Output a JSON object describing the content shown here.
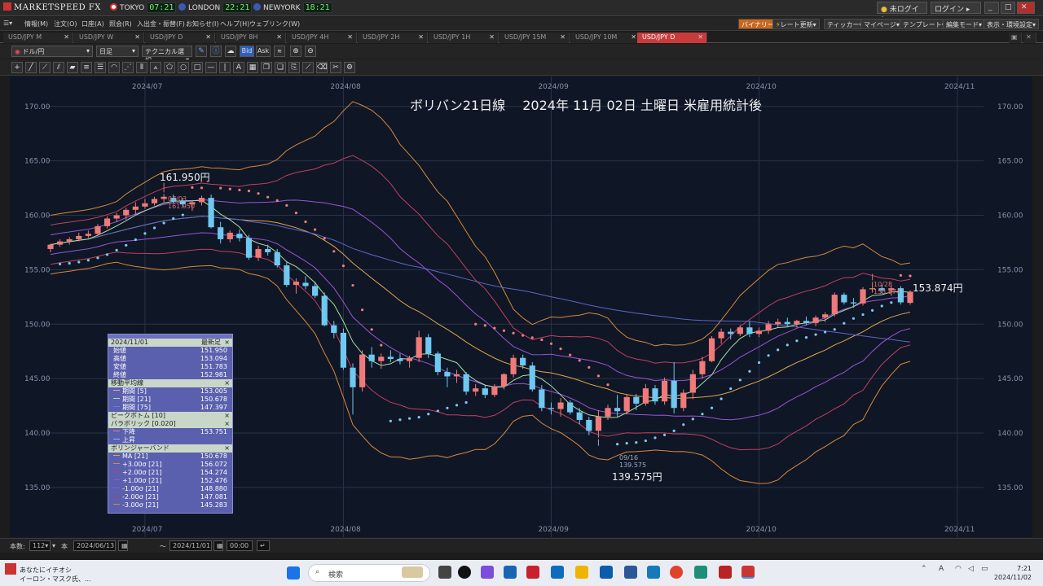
{
  "app": {
    "title": "MARKETSPEED FX"
  },
  "clocks": [
    {
      "city": "TOKYO",
      "time": "07:21",
      "color": "#d33"
    },
    {
      "city": "LONDON",
      "time": "22:21",
      "color": "#3a5bb5"
    },
    {
      "city": "NEWYORK",
      "time": "18:21",
      "color": "#3a5bb5"
    }
  ],
  "topright": {
    "status": "未ログイン",
    "login": "ログイン"
  },
  "menus": [
    "情報(M)",
    "注文(O)",
    "口座(A)",
    "照会(R)",
    "入出金・振替(F)",
    "お知らせ(I)",
    "ヘルプ(H)",
    "ウェブリンク(W)"
  ],
  "rmenus": [
    "バイナリー",
    "レート更新",
    "ティッカー",
    "マイページ",
    "テンプレート",
    "編集モード",
    "表示・環境設定"
  ],
  "tabs": [
    "USD/JPY M",
    "USD/JPY W",
    "USD/JPY D",
    "USD/JPY 8H",
    "USD/JPY 4H",
    "USD/JPY 2H",
    "USD/JPY 1H",
    "USD/JPY 15M",
    "USD/JPY 10M",
    "USD/JPY D"
  ],
  "toolbar": {
    "pair": "ドル/円",
    "period": "日足",
    "tech": "テクニカル選択",
    "bid": "Bid",
    "ask": "Ask"
  },
  "chart": {
    "title": "ボリバン21日線　 2024年 11月 02日 土曜日 米雇用統計後",
    "xticks": [
      "2024/07",
      "2024/08",
      "2024/09",
      "2024/10",
      "2024/11"
    ],
    "yticks": [
      "170.00",
      "165.00",
      "160.00",
      "155.00",
      "150.00",
      "145.00",
      "140.00",
      "135.00"
    ],
    "annotations": {
      "high_label": "161.950円",
      "high_date": "07/03",
      "high_value": "161.950",
      "low_label": "139.575円",
      "low_date": "09/16",
      "low_value": "139.575",
      "last_label": "153.874円",
      "last_date": "10/28",
      "last_value": "153.874"
    }
  },
  "chart_data": {
    "type": "candlestick",
    "ylim": [
      132,
      172
    ],
    "series_note": "",
    "candles": [
      {
        "o": 156.9,
        "h": 157.4,
        "l": 156.6,
        "c": 157.3
      },
      {
        "o": 157.3,
        "h": 157.8,
        "l": 157.1,
        "c": 157.6
      },
      {
        "o": 157.6,
        "h": 158.0,
        "l": 157.3,
        "c": 157.8
      },
      {
        "o": 157.8,
        "h": 158.4,
        "l": 157.6,
        "c": 158.1
      },
      {
        "o": 158.1,
        "h": 158.6,
        "l": 157.9,
        "c": 158.3
      },
      {
        "o": 158.3,
        "h": 159.2,
        "l": 158.1,
        "c": 159.0
      },
      {
        "o": 159.0,
        "h": 159.9,
        "l": 158.8,
        "c": 159.7
      },
      {
        "o": 159.7,
        "h": 160.2,
        "l": 159.4,
        "c": 160.0
      },
      {
        "o": 160.0,
        "h": 160.7,
        "l": 159.6,
        "c": 160.5
      },
      {
        "o": 160.5,
        "h": 161.2,
        "l": 160.0,
        "c": 160.8
      },
      {
        "o": 160.8,
        "h": 161.5,
        "l": 160.6,
        "c": 161.1
      },
      {
        "o": 161.1,
        "h": 161.7,
        "l": 160.9,
        "c": 161.5
      },
      {
        "o": 161.5,
        "h": 161.95,
        "l": 161.2,
        "c": 161.7
      },
      {
        "o": 161.6,
        "h": 161.9,
        "l": 161.1,
        "c": 161.3
      },
      {
        "o": 161.3,
        "h": 161.6,
        "l": 160.7,
        "c": 161.0
      },
      {
        "o": 161.0,
        "h": 161.4,
        "l": 160.4,
        "c": 161.2
      },
      {
        "o": 161.2,
        "h": 161.8,
        "l": 160.9,
        "c": 161.6
      },
      {
        "o": 161.6,
        "h": 161.9,
        "l": 158.8,
        "c": 158.9
      },
      {
        "o": 158.9,
        "h": 159.4,
        "l": 157.4,
        "c": 157.8
      },
      {
        "o": 157.8,
        "h": 158.6,
        "l": 157.5,
        "c": 158.4
      },
      {
        "o": 158.3,
        "h": 158.7,
        "l": 157.6,
        "c": 157.9
      },
      {
        "o": 157.9,
        "h": 158.2,
        "l": 155.9,
        "c": 156.1
      },
      {
        "o": 156.1,
        "h": 157.2,
        "l": 155.8,
        "c": 156.9
      },
      {
        "o": 156.9,
        "h": 157.3,
        "l": 156.3,
        "c": 156.6
      },
      {
        "o": 156.6,
        "h": 156.9,
        "l": 155.2,
        "c": 155.4
      },
      {
        "o": 155.4,
        "h": 155.8,
        "l": 153.4,
        "c": 153.6
      },
      {
        "o": 153.6,
        "h": 154.2,
        "l": 152.8,
        "c": 153.9
      },
      {
        "o": 153.8,
        "h": 154.4,
        "l": 153.2,
        "c": 153.5
      },
      {
        "o": 153.5,
        "h": 153.9,
        "l": 152.4,
        "c": 152.6
      },
      {
        "o": 152.6,
        "h": 152.9,
        "l": 149.8,
        "c": 149.9
      },
      {
        "o": 149.9,
        "h": 150.3,
        "l": 148.7,
        "c": 149.2
      },
      {
        "o": 149.2,
        "h": 149.6,
        "l": 145.8,
        "c": 146.0
      },
      {
        "o": 146.0,
        "h": 146.4,
        "l": 141.7,
        "c": 144.2
      },
      {
        "o": 144.2,
        "h": 147.6,
        "l": 143.8,
        "c": 147.2
      },
      {
        "o": 147.2,
        "h": 147.9,
        "l": 146.0,
        "c": 146.6
      },
      {
        "o": 146.6,
        "h": 147.3,
        "l": 145.9,
        "c": 147.0
      },
      {
        "o": 147.0,
        "h": 147.6,
        "l": 146.5,
        "c": 146.8
      },
      {
        "o": 146.8,
        "h": 147.3,
        "l": 146.3,
        "c": 146.6
      },
      {
        "o": 146.6,
        "h": 147.1,
        "l": 146.0,
        "c": 146.9
      },
      {
        "o": 146.9,
        "h": 149.4,
        "l": 146.5,
        "c": 148.8
      },
      {
        "o": 148.8,
        "h": 149.1,
        "l": 146.9,
        "c": 147.3
      },
      {
        "o": 147.3,
        "h": 147.5,
        "l": 145.3,
        "c": 145.6
      },
      {
        "o": 145.6,
        "h": 146.0,
        "l": 144.2,
        "c": 145.2
      },
      {
        "o": 145.2,
        "h": 145.8,
        "l": 144.6,
        "c": 145.4
      },
      {
        "o": 145.4,
        "h": 145.6,
        "l": 143.5,
        "c": 143.8
      },
      {
        "o": 143.8,
        "h": 144.5,
        "l": 143.4,
        "c": 144.1
      },
      {
        "o": 144.1,
        "h": 144.4,
        "l": 143.2,
        "c": 143.5
      },
      {
        "o": 143.5,
        "h": 144.5,
        "l": 143.3,
        "c": 144.3
      },
      {
        "o": 144.3,
        "h": 145.5,
        "l": 144.0,
        "c": 145.4
      },
      {
        "o": 145.4,
        "h": 147.2,
        "l": 145.1,
        "c": 146.9
      },
      {
        "o": 146.9,
        "h": 147.2,
        "l": 145.9,
        "c": 146.2
      },
      {
        "o": 146.2,
        "h": 146.5,
        "l": 143.8,
        "c": 144.0
      },
      {
        "o": 144.0,
        "h": 144.4,
        "l": 142.0,
        "c": 142.3
      },
      {
        "o": 142.3,
        "h": 142.8,
        "l": 141.7,
        "c": 142.2
      },
      {
        "o": 142.2,
        "h": 143.2,
        "l": 141.5,
        "c": 142.8
      },
      {
        "o": 142.8,
        "h": 143.0,
        "l": 141.7,
        "c": 141.9
      },
      {
        "o": 141.9,
        "h": 142.3,
        "l": 140.8,
        "c": 141.2
      },
      {
        "o": 141.2,
        "h": 141.5,
        "l": 139.8,
        "c": 140.2
      },
      {
        "o": 140.2,
        "h": 142.1,
        "l": 139.575,
        "c": 141.5
      },
      {
        "o": 141.5,
        "h": 142.6,
        "l": 141.2,
        "c": 142.3
      },
      {
        "o": 142.3,
        "h": 143.5,
        "l": 141.5,
        "c": 142.0
      },
      {
        "o": 142.0,
        "h": 143.5,
        "l": 141.7,
        "c": 143.3
      },
      {
        "o": 143.3,
        "h": 143.6,
        "l": 142.1,
        "c": 142.7
      },
      {
        "o": 142.7,
        "h": 144.5,
        "l": 142.5,
        "c": 144.1
      },
      {
        "o": 144.1,
        "h": 144.4,
        "l": 142.6,
        "c": 142.9
      },
      {
        "o": 142.9,
        "h": 145.1,
        "l": 142.6,
        "c": 144.8
      },
      {
        "o": 144.8,
        "h": 146.5,
        "l": 141.8,
        "c": 142.3
      },
      {
        "o": 142.3,
        "h": 144.0,
        "l": 142.0,
        "c": 143.7
      },
      {
        "o": 143.7,
        "h": 145.8,
        "l": 143.1,
        "c": 145.4
      },
      {
        "o": 145.4,
        "h": 147.0,
        "l": 145.0,
        "c": 146.6
      },
      {
        "o": 146.6,
        "h": 148.9,
        "l": 146.5,
        "c": 148.7
      },
      {
        "o": 148.7,
        "h": 149.6,
        "l": 148.2,
        "c": 149.3
      },
      {
        "o": 149.3,
        "h": 149.6,
        "l": 148.6,
        "c": 149.1
      },
      {
        "o": 149.1,
        "h": 149.9,
        "l": 148.9,
        "c": 149.7
      },
      {
        "o": 149.7,
        "h": 150.3,
        "l": 148.8,
        "c": 149.1
      },
      {
        "o": 149.1,
        "h": 149.7,
        "l": 148.8,
        "c": 149.4
      },
      {
        "o": 149.4,
        "h": 150.3,
        "l": 149.1,
        "c": 150.0
      },
      {
        "o": 150.0,
        "h": 150.5,
        "l": 149.7,
        "c": 150.2
      },
      {
        "o": 150.2,
        "h": 150.6,
        "l": 149.8,
        "c": 150.0
      },
      {
        "o": 150.0,
        "h": 150.4,
        "l": 149.7,
        "c": 150.3
      },
      {
        "o": 150.3,
        "h": 150.7,
        "l": 149.9,
        "c": 150.1
      },
      {
        "o": 150.1,
        "h": 150.8,
        "l": 149.8,
        "c": 150.6
      },
      {
        "o": 150.6,
        "h": 151.1,
        "l": 150.2,
        "c": 150.9
      },
      {
        "o": 150.9,
        "h": 152.9,
        "l": 150.7,
        "c": 152.7
      },
      {
        "o": 152.7,
        "h": 152.9,
        "l": 151.8,
        "c": 152.0
      },
      {
        "o": 152.0,
        "h": 152.4,
        "l": 151.5,
        "c": 151.9
      },
      {
        "o": 151.9,
        "h": 153.4,
        "l": 151.7,
        "c": 153.2
      },
      {
        "o": 153.2,
        "h": 153.874,
        "l": 152.9,
        "c": 153.3
      },
      {
        "o": 153.3,
        "h": 153.6,
        "l": 152.8,
        "c": 153.1
      },
      {
        "o": 153.1,
        "h": 153.5,
        "l": 152.6,
        "c": 153.3
      },
      {
        "o": 153.3,
        "h": 153.5,
        "l": 151.8,
        "c": 152.0
      },
      {
        "o": 151.95,
        "h": 153.094,
        "l": 151.783,
        "c": 152.981
      }
    ]
  },
  "info": {
    "date": "2024/11/01",
    "latest": "最新足",
    "ohlc": [
      {
        "k": "始値",
        "v": "151.950"
      },
      {
        "k": "高値",
        "v": "153.094"
      },
      {
        "k": "安値",
        "v": "151.783"
      },
      {
        "k": "終値",
        "v": "152.981"
      }
    ],
    "ma_title": "移動平均線",
    "ma": [
      {
        "k": "期間 [5]",
        "v": "153.005",
        "c": "#f2a3a3"
      },
      {
        "k": "期間 [21]",
        "v": "150.678",
        "c": "#a8e0a8"
      },
      {
        "k": "期間 [75]",
        "v": "147.397",
        "c": "#6c7bd6"
      }
    ],
    "pb_title": "ピークボトム [10]",
    "sar_title": "パラボリック [0.020]",
    "sar": [
      {
        "k": "下降",
        "v": "153.751",
        "c": "#f37b7b"
      },
      {
        "k": "上昇",
        "v": "",
        "c": "#7ccaf0"
      }
    ],
    "bb_title": "ボリンジャーバンド",
    "bb": [
      {
        "k": "MA [21]",
        "v": "150.678",
        "c": "#e0a64a"
      },
      {
        "k": "+3.00σ [21]",
        "v": "156.072",
        "c": "#d68a3a"
      },
      {
        "k": "+2.00σ [21]",
        "v": "154.274",
        "c": "#c04060"
      },
      {
        "k": "+1.00σ [21]",
        "v": "152.476",
        "c": "#9a55d6"
      },
      {
        "k": "-1.00σ [21]",
        "v": "148.880",
        "c": "#9a55d6"
      },
      {
        "k": "-2.00σ [21]",
        "v": "147.081",
        "c": "#c04060"
      },
      {
        "k": "-3.00σ [21]",
        "v": "145.283",
        "c": "#d68a3a"
      }
    ]
  },
  "bottom": {
    "count_label": "本数:",
    "count": "112",
    "unit": "本",
    "from": "2024/06/13",
    "to": "2024/11/01",
    "tilde": "〜"
  },
  "taskbar": {
    "news1": "あなたにイチオシ",
    "news2": "イーロン・マスク氏、...",
    "search": "検索",
    "time": "7:21",
    "date": "2024/11/02",
    "lang": "A"
  }
}
